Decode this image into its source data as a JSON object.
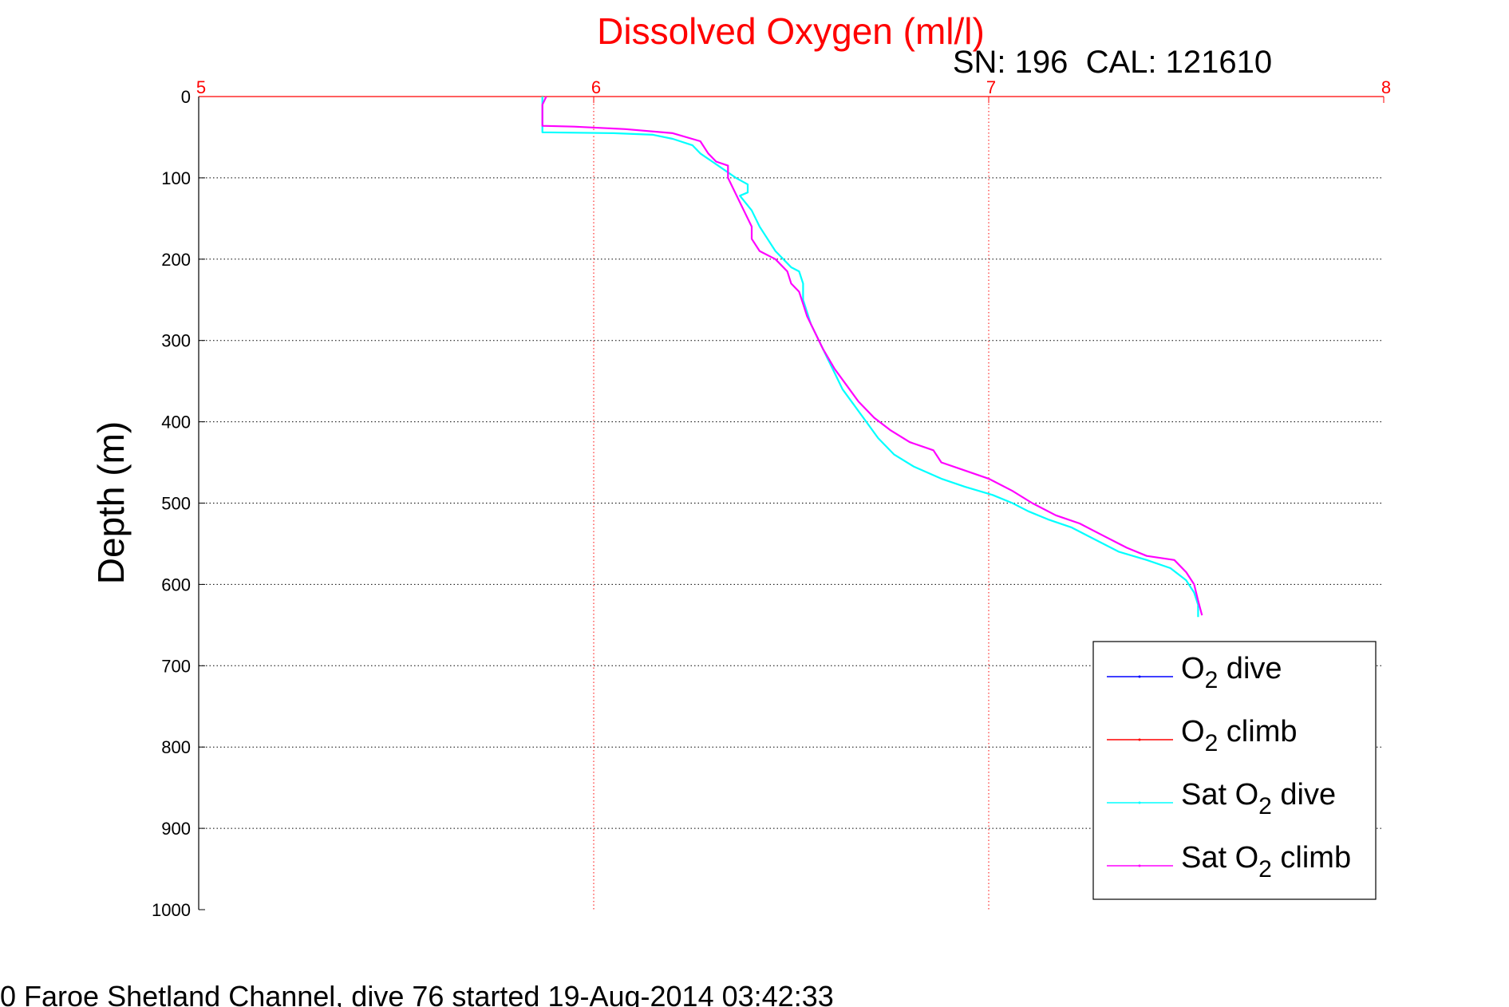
{
  "chart_data": {
    "type": "line",
    "title": "Dissolved Oxygen (ml/l)",
    "subtitle": "SN: 196  CAL: 121610",
    "ylabel": "Depth (m)",
    "xlabel": "",
    "xlim": [
      5,
      8
    ],
    "ylim": [
      0,
      1000
    ],
    "y_reversed": true,
    "x_axis_position": "top",
    "xticks": [
      "5",
      "6",
      "7",
      "8"
    ],
    "yticks": [
      "0",
      "100",
      "200",
      "300",
      "400",
      "500",
      "600",
      "700",
      "800",
      "900",
      "1000"
    ],
    "grid": true,
    "legend_position": "bottom-right",
    "footer": "0 Faroe Shetland Channel, dive 76 started 19-Aug-2014 03:42:33",
    "series": [
      {
        "name": "O2 dive",
        "legend_main": "O",
        "legend_sub": "2",
        "legend_rest": " dive",
        "color": "#0000ff",
        "points": []
      },
      {
        "name": "O2 climb",
        "legend_main": "O",
        "legend_sub": "2",
        "legend_rest": " climb",
        "color": "#ff0000",
        "points": []
      },
      {
        "name": "Sat O2 dive",
        "legend_main": "Sat O",
        "legend_sub": "2",
        "legend_rest": " dive",
        "color": "#00ffff",
        "points": [
          [
            5.87,
            0
          ],
          [
            5.87,
            10
          ],
          [
            5.87,
            20
          ],
          [
            5.87,
            30
          ],
          [
            5.87,
            40
          ],
          [
            5.87,
            44
          ],
          [
            6.05,
            45
          ],
          [
            6.15,
            47
          ],
          [
            6.2,
            52
          ],
          [
            6.25,
            60
          ],
          [
            6.27,
            70
          ],
          [
            6.3,
            80
          ],
          [
            6.33,
            90
          ],
          [
            6.36,
            100
          ],
          [
            6.39,
            108
          ],
          [
            6.39,
            118
          ],
          [
            6.37,
            122
          ],
          [
            6.4,
            140
          ],
          [
            6.42,
            160
          ],
          [
            6.44,
            175
          ],
          [
            6.46,
            190
          ],
          [
            6.48,
            200
          ],
          [
            6.5,
            210
          ],
          [
            6.52,
            215
          ],
          [
            6.53,
            230
          ],
          [
            6.53,
            250
          ],
          [
            6.54,
            265
          ],
          [
            6.55,
            280
          ],
          [
            6.57,
            300
          ],
          [
            6.59,
            320
          ],
          [
            6.61,
            340
          ],
          [
            6.63,
            360
          ],
          [
            6.66,
            380
          ],
          [
            6.69,
            400
          ],
          [
            6.72,
            420
          ],
          [
            6.76,
            440
          ],
          [
            6.81,
            455
          ],
          [
            6.88,
            470
          ],
          [
            6.94,
            480
          ],
          [
            7.01,
            490
          ],
          [
            7.06,
            500
          ],
          [
            7.1,
            510
          ],
          [
            7.15,
            520
          ],
          [
            7.21,
            530
          ],
          [
            7.27,
            545
          ],
          [
            7.33,
            560
          ],
          [
            7.4,
            570
          ],
          [
            7.46,
            580
          ],
          [
            7.5,
            595
          ],
          [
            7.52,
            610
          ],
          [
            7.53,
            625
          ],
          [
            7.53,
            640
          ]
        ]
      },
      {
        "name": "Sat O2 climb",
        "legend_main": "Sat O",
        "legend_sub": "2",
        "legend_rest": " climb",
        "color": "#ff00ff",
        "points": [
          [
            5.88,
            0
          ],
          [
            5.87,
            10
          ],
          [
            5.87,
            20
          ],
          [
            5.87,
            30
          ],
          [
            5.87,
            36
          ],
          [
            5.95,
            37
          ],
          [
            6.08,
            40
          ],
          [
            6.2,
            45
          ],
          [
            6.27,
            55
          ],
          [
            6.29,
            70
          ],
          [
            6.31,
            80
          ],
          [
            6.34,
            85
          ],
          [
            6.34,
            100
          ],
          [
            6.36,
            120
          ],
          [
            6.38,
            140
          ],
          [
            6.4,
            160
          ],
          [
            6.4,
            175
          ],
          [
            6.42,
            190
          ],
          [
            6.46,
            200
          ],
          [
            6.49,
            215
          ],
          [
            6.5,
            230
          ],
          [
            6.52,
            240
          ],
          [
            6.53,
            255
          ],
          [
            6.54,
            270
          ],
          [
            6.56,
            290
          ],
          [
            6.58,
            310
          ],
          [
            6.61,
            335
          ],
          [
            6.64,
            355
          ],
          [
            6.67,
            375
          ],
          [
            6.71,
            395
          ],
          [
            6.75,
            410
          ],
          [
            6.8,
            425
          ],
          [
            6.86,
            435
          ],
          [
            6.88,
            450
          ],
          [
            6.94,
            460
          ],
          [
            7.0,
            470
          ],
          [
            7.06,
            485
          ],
          [
            7.11,
            500
          ],
          [
            7.17,
            515
          ],
          [
            7.23,
            525
          ],
          [
            7.29,
            540
          ],
          [
            7.35,
            555
          ],
          [
            7.4,
            565
          ],
          [
            7.47,
            570
          ],
          [
            7.5,
            585
          ],
          [
            7.52,
            600
          ],
          [
            7.53,
            620
          ],
          [
            7.54,
            638
          ]
        ]
      }
    ]
  }
}
